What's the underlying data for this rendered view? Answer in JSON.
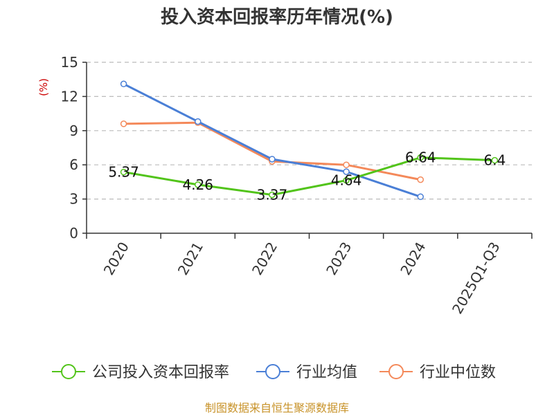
{
  "chart_data": {
    "type": "line",
    "title": "投入资本回报率历年情况(%)",
    "ylabel": "(%)",
    "xlabel": "",
    "ylim": [
      0,
      15
    ],
    "yticks": [
      0,
      3,
      6,
      9,
      12,
      15
    ],
    "grid": true,
    "categories": [
      "2020",
      "2021",
      "2022",
      "2023",
      "2024",
      "2025Q1-Q3"
    ],
    "series": [
      {
        "name": "公司投入资本回报率",
        "color": "#52c41a",
        "values": [
          5.37,
          4.26,
          3.37,
          4.64,
          6.64,
          6.4
        ],
        "labels": [
          "5.37",
          "4.26",
          "3.37",
          "4.64",
          "6.64",
          "6.4"
        ],
        "show_labels": true
      },
      {
        "name": "行业均值",
        "color": "#4a7fd6",
        "values": [
          13.1,
          9.8,
          6.5,
          5.4,
          3.2,
          null
        ],
        "show_labels": false
      },
      {
        "name": "行业中位数",
        "color": "#f4895a",
        "values": [
          9.6,
          9.7,
          6.3,
          6.0,
          4.7,
          null
        ],
        "show_labels": false
      }
    ],
    "legend_position": "bottom"
  },
  "source": "制图数据来自恒生聚源数据库"
}
